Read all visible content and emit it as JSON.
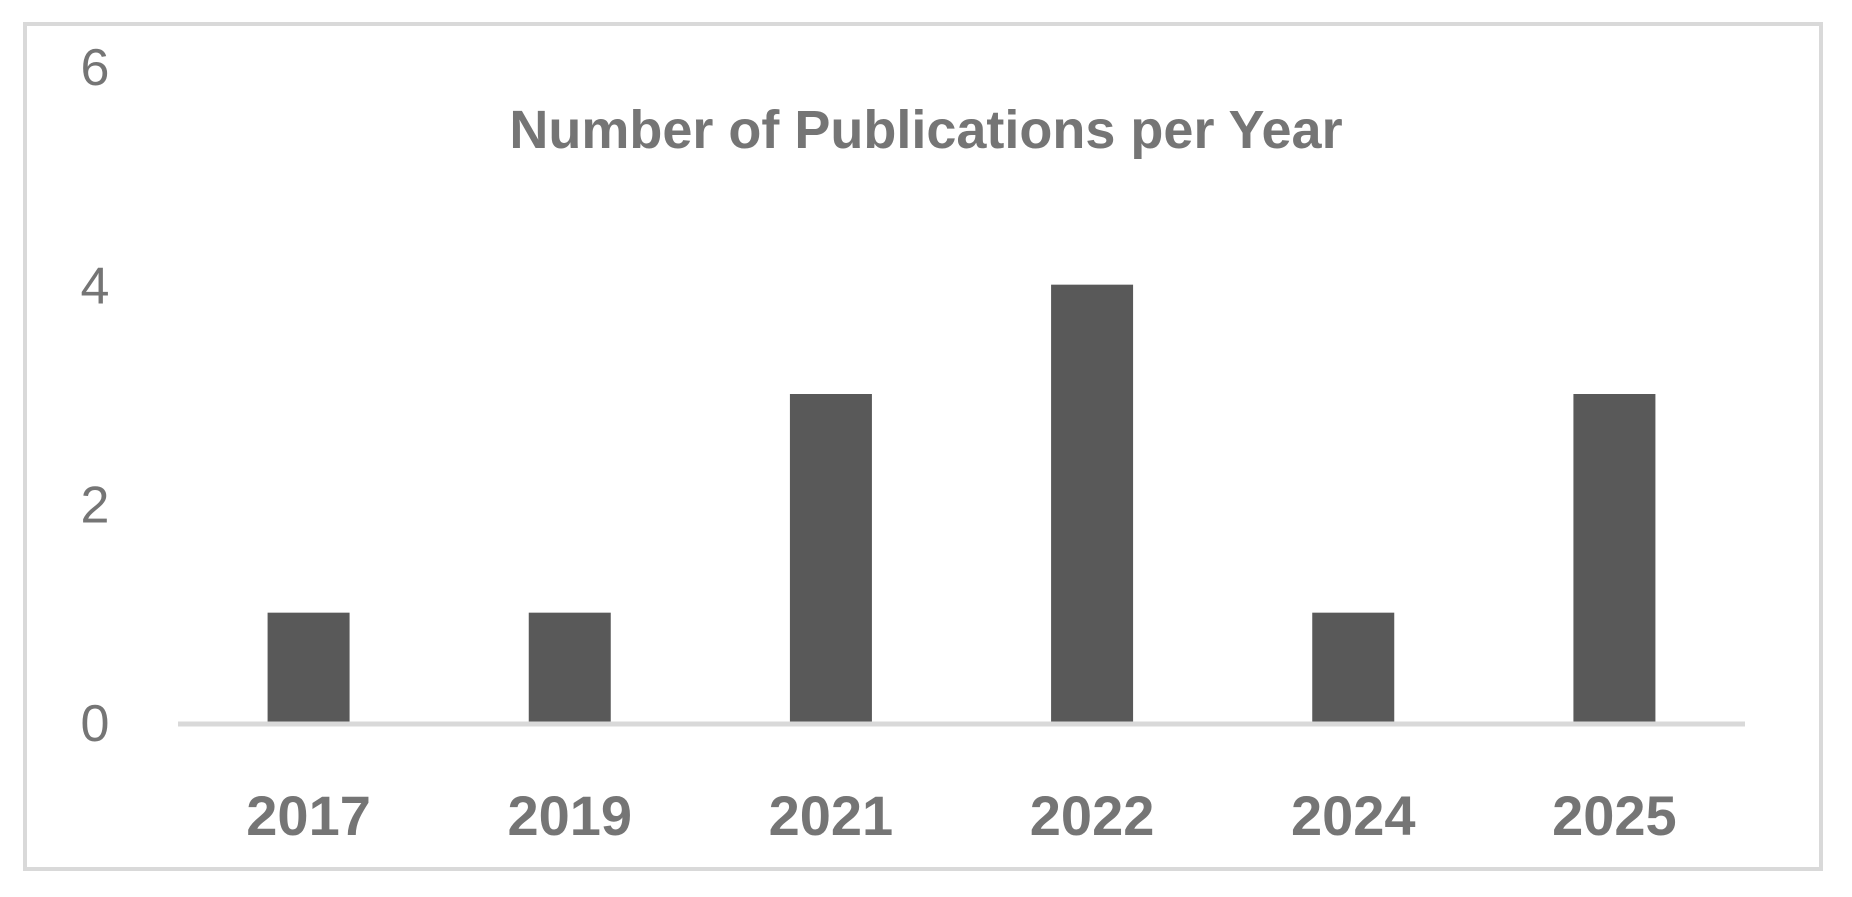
{
  "chart_data": {
    "type": "bar",
    "title": "Number of Publications per Year",
    "xlabel": "",
    "ylabel": "",
    "categories": [
      "2017",
      "2019",
      "2021",
      "2022",
      "2024",
      "2025"
    ],
    "values": [
      1,
      1,
      3,
      4,
      1,
      3
    ],
    "ylim": [
      0,
      6
    ],
    "yticks": [
      "0",
      "2",
      "4",
      "6"
    ],
    "grid": false,
    "legend": "none",
    "colors": {
      "bar": "#595959",
      "axis": "#d9d9d9",
      "text": "#757575",
      "frame": "#d9d9d9"
    }
  }
}
